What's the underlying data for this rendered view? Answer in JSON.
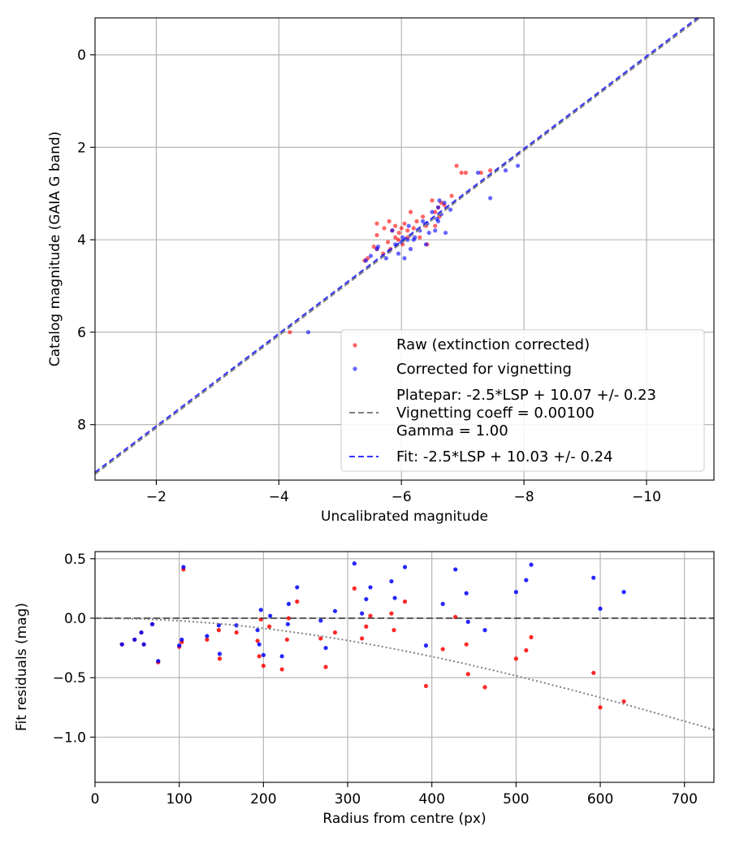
{
  "colors": {
    "raw": "#ff0000",
    "corrected": "#0000ff",
    "platepar_line": "#808080",
    "fit_line": "#0000ff",
    "vignetting_curve": "#808080",
    "zero_line": "#404040",
    "grid": "#b0b0b0"
  },
  "chart_data": [
    {
      "type": "scatter",
      "title": "",
      "xlabel": "Uncalibrated magnitude",
      "ylabel": "Catalog magnitude (GAIA G band)",
      "xlim": [
        -1,
        -11.1
      ],
      "ylim": [
        9.2,
        -0.8
      ],
      "x_inverted": true,
      "y_inverted": true,
      "xticks": [
        -2,
        -4,
        -6,
        -8,
        -10
      ],
      "xtick_labels": [
        "−2",
        "−4",
        "−6",
        "−8",
        "−10"
      ],
      "yticks": [
        0,
        2,
        4,
        6,
        8
      ],
      "ytick_labels": [
        "0",
        "2",
        "4",
        "6",
        "8"
      ],
      "grid": true,
      "legend_position": "lower right",
      "legend": [
        {
          "label": "Raw (extinction corrected)",
          "kind": "marker",
          "color": "#ff0000"
        },
        {
          "label": "Corrected for vignetting",
          "kind": "marker",
          "color": "#0000ff"
        },
        {
          "label_lines": [
            "Platepar: -2.5*LSP + 10.07 +/- 0.23",
            "Vignetting coeff = 0.00100",
            "Gamma = 1.00"
          ],
          "kind": "dashed",
          "color": "#808080"
        },
        {
          "label": "Fit: -2.5*LSP + 10.03 +/- 0.24",
          "kind": "dashed",
          "color": "#0000ff"
        }
      ],
      "lines": [
        {
          "name": "Platepar",
          "slope": 1,
          "intercept": 10.07,
          "color": "#808080",
          "style": "dashed"
        },
        {
          "name": "Fit",
          "slope": 1,
          "intercept": 10.03,
          "color": "#0000ff",
          "style": "dashed"
        }
      ],
      "series": [
        {
          "name": "Raw (extinction corrected)",
          "color": "#ff0000",
          "points": [
            [
              -4.18,
              6.0
            ],
            [
              -5.4,
              4.45
            ],
            [
              -5.45,
              4.4
            ],
            [
              -5.55,
              4.15
            ],
            [
              -5.6,
              4.2
            ],
            [
              -5.6,
              3.9
            ],
            [
              -5.6,
              3.65
            ],
            [
              -5.7,
              4.3
            ],
            [
              -5.72,
              3.75
            ],
            [
              -5.78,
              4.05
            ],
            [
              -5.8,
              3.6
            ],
            [
              -5.82,
              4.2
            ],
            [
              -5.85,
              3.8
            ],
            [
              -5.9,
              3.95
            ],
            [
              -5.9,
              3.7
            ],
            [
              -5.95,
              4.0
            ],
            [
              -5.96,
              3.85
            ],
            [
              -6.0,
              3.75
            ],
            [
              -6.02,
              4.1
            ],
            [
              -6.05,
              3.65
            ],
            [
              -6.1,
              3.8
            ],
            [
              -6.1,
              3.95
            ],
            [
              -6.15,
              3.4
            ],
            [
              -6.2,
              3.75
            ],
            [
              -6.25,
              3.6
            ],
            [
              -6.3,
              3.95
            ],
            [
              -6.35,
              3.5
            ],
            [
              -6.4,
              3.7
            ],
            [
              -6.42,
              4.1
            ],
            [
              -6.5,
              3.15
            ],
            [
              -6.55,
              3.4
            ],
            [
              -6.55,
              3.7
            ],
            [
              -6.6,
              3.3
            ],
            [
              -6.62,
              3.5
            ],
            [
              -6.65,
              3.2
            ],
            [
              -6.7,
              3.25
            ],
            [
              -6.82,
              3.05
            ],
            [
              -6.9,
              2.4
            ],
            [
              -6.98,
              2.55
            ],
            [
              -7.05,
              2.55
            ],
            [
              -7.3,
              2.55
            ],
            [
              -7.45,
              2.5
            ]
          ]
        },
        {
          "name": "Corrected for vignetting",
          "color": "#0000ff",
          "points": [
            [
              -4.48,
              6.0
            ],
            [
              -5.42,
              4.45
            ],
            [
              -5.5,
              4.35
            ],
            [
              -5.6,
              4.2
            ],
            [
              -5.62,
              4.15
            ],
            [
              -5.75,
              4.4
            ],
            [
              -5.8,
              4.25
            ],
            [
              -5.85,
              3.8
            ],
            [
              -5.9,
              4.1
            ],
            [
              -5.95,
              4.3
            ],
            [
              -6.0,
              4.05
            ],
            [
              -6.02,
              3.95
            ],
            [
              -6.05,
              4.4
            ],
            [
              -6.1,
              4.0
            ],
            [
              -6.12,
              3.7
            ],
            [
              -6.15,
              4.2
            ],
            [
              -6.2,
              4.0
            ],
            [
              -6.22,
              3.95
            ],
            [
              -6.3,
              3.8
            ],
            [
              -6.35,
              3.6
            ],
            [
              -6.4,
              4.1
            ],
            [
              -6.42,
              3.65
            ],
            [
              -6.45,
              3.85
            ],
            [
              -6.5,
              3.4
            ],
            [
              -6.55,
              3.8
            ],
            [
              -6.58,
              3.55
            ],
            [
              -6.6,
              3.3
            ],
            [
              -6.6,
              3.6
            ],
            [
              -6.62,
              3.15
            ],
            [
              -6.65,
              3.45
            ],
            [
              -6.7,
              3.2
            ],
            [
              -6.72,
              3.85
            ],
            [
              -6.8,
              3.35
            ],
            [
              -7.25,
              2.55
            ],
            [
              -7.45,
              3.1
            ],
            [
              -7.7,
              2.5
            ],
            [
              -7.9,
              2.4
            ]
          ]
        }
      ]
    },
    {
      "type": "scatter",
      "title": "",
      "xlabel": "Radius from centre (px)",
      "ylabel": "Fit residuals (mag)",
      "xlim": [
        0,
        735
      ],
      "ylim": [
        -1.38,
        0.56
      ],
      "xticks": [
        0,
        100,
        200,
        300,
        400,
        500,
        600,
        700
      ],
      "xtick_labels": [
        "0",
        "100",
        "200",
        "300",
        "400",
        "500",
        "600",
        "700"
      ],
      "yticks": [
        0.5,
        0.0,
        -0.5,
        -1.0
      ],
      "ytick_labels": [
        "0.5",
        "0.0",
        "−0.5",
        "−1.0"
      ],
      "grid": true,
      "lines": [
        {
          "name": "zero",
          "kind": "horizontal",
          "y": 0,
          "color": "#404040",
          "style": "dashed"
        },
        {
          "name": "vignetting model",
          "kind": "curve",
          "coeff": 0.001,
          "color": "#808080",
          "style": "dotted"
        }
      ],
      "series": [
        {
          "name": "Raw (extinction corrected)",
          "color": "#ff0000",
          "points": [
            [
              32,
              -0.22
            ],
            [
              47,
              -0.18
            ],
            [
              55,
              -0.12
            ],
            [
              58,
              -0.22
            ],
            [
              68,
              -0.05
            ],
            [
              75,
              -0.37
            ],
            [
              100,
              -0.24
            ],
            [
              103,
              -0.2
            ],
            [
              105,
              0.41
            ],
            [
              133,
              -0.18
            ],
            [
              147,
              -0.1
            ],
            [
              148,
              -0.34
            ],
            [
              168,
              -0.12
            ],
            [
              193,
              -0.19
            ],
            [
              195,
              -0.32
            ],
            [
              197,
              -0.01
            ],
            [
              200,
              -0.4
            ],
            [
              207,
              -0.07
            ],
            [
              222,
              -0.43
            ],
            [
              228,
              -0.18
            ],
            [
              230,
              0.0
            ],
            [
              240,
              0.14
            ],
            [
              268,
              -0.17
            ],
            [
              274,
              -0.41
            ],
            [
              285,
              -0.12
            ],
            [
              308,
              0.25
            ],
            [
              317,
              -0.17
            ],
            [
              322,
              -0.07
            ],
            [
              327,
              0.02
            ],
            [
              352,
              0.04
            ],
            [
              355,
              -0.1
            ],
            [
              368,
              0.14
            ],
            [
              393,
              -0.57
            ],
            [
              413,
              -0.26
            ],
            [
              428,
              0.01
            ],
            [
              441,
              -0.22
            ],
            [
              443,
              -0.47
            ],
            [
              463,
              -0.58
            ],
            [
              500,
              -0.34
            ],
            [
              512,
              -0.27
            ],
            [
              518,
              -0.16
            ],
            [
              592,
              -0.46
            ],
            [
              600,
              -0.75
            ],
            [
              628,
              -0.7
            ]
          ]
        },
        {
          "name": "Corrected for vignetting",
          "color": "#0000ff",
          "points": [
            [
              32,
              -0.22
            ],
            [
              47,
              -0.18
            ],
            [
              55,
              -0.12
            ],
            [
              58,
              -0.22
            ],
            [
              68,
              -0.05
            ],
            [
              75,
              -0.36
            ],
            [
              100,
              -0.23
            ],
            [
              103,
              -0.18
            ],
            [
              105,
              0.43
            ],
            [
              133,
              -0.15
            ],
            [
              147,
              -0.06
            ],
            [
              148,
              -0.3
            ],
            [
              168,
              -0.06
            ],
            [
              193,
              -0.1
            ],
            [
              195,
              -0.22
            ],
            [
              197,
              0.07
            ],
            [
              200,
              -0.31
            ],
            [
              208,
              0.02
            ],
            [
              222,
              -0.32
            ],
            [
              229,
              -0.05
            ],
            [
              230,
              0.12
            ],
            [
              240,
              0.26
            ],
            [
              268,
              -0.02
            ],
            [
              274,
              -0.25
            ],
            [
              285,
              0.06
            ],
            [
              308,
              0.46
            ],
            [
              317,
              0.04
            ],
            [
              322,
              0.16
            ],
            [
              327,
              0.26
            ],
            [
              352,
              0.31
            ],
            [
              356,
              0.17
            ],
            [
              368,
              0.43
            ],
            [
              393,
              -0.23
            ],
            [
              413,
              0.12
            ],
            [
              428,
              0.41
            ],
            [
              441,
              0.21
            ],
            [
              443,
              -0.03
            ],
            [
              463,
              -0.1
            ],
            [
              500,
              0.22
            ],
            [
              512,
              0.32
            ],
            [
              518,
              0.45
            ],
            [
              592,
              0.34
            ],
            [
              600,
              0.08
            ],
            [
              628,
              0.22
            ]
          ]
        }
      ]
    }
  ]
}
